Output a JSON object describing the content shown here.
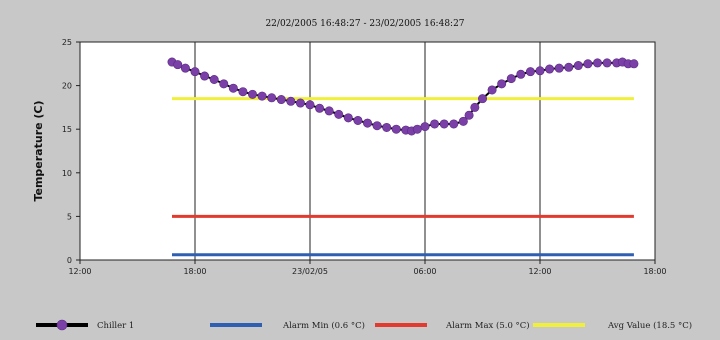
{
  "chart_data": {
    "type": "line",
    "title": "22/02/2005 16:48:27 - 23/02/2005 16:48:27",
    "xlabel": "",
    "ylabel": "Temperature (C)",
    "ylim": [
      0,
      25
    ],
    "yticks": [
      0,
      5,
      10,
      15,
      20,
      25
    ],
    "xlim_hours": [
      0,
      30
    ],
    "xticks": [
      {
        "h": 0,
        "label": "12:00"
      },
      {
        "h": 6,
        "label": "18:00"
      },
      {
        "h": 12,
        "label": "23/02/05"
      },
      {
        "h": 18,
        "label": "06:00"
      },
      {
        "h": 24,
        "label": "12:00"
      },
      {
        "h": 30,
        "label": "18:00"
      }
    ],
    "grid": "vertical",
    "legend_position": "bottom",
    "series": [
      {
        "name": "Chiller 1",
        "kind": "line-markers",
        "color": "#000000",
        "marker_color": "#7b3fa8",
        "points": [
          [
            4.8,
            22.7
          ],
          [
            5.1,
            22.4
          ],
          [
            5.5,
            22.0
          ],
          [
            6.0,
            21.6
          ],
          [
            6.5,
            21.1
          ],
          [
            7.0,
            20.7
          ],
          [
            7.5,
            20.2
          ],
          [
            8.0,
            19.7
          ],
          [
            8.5,
            19.3
          ],
          [
            9.0,
            19.0
          ],
          [
            9.5,
            18.8
          ],
          [
            10.0,
            18.6
          ],
          [
            10.5,
            18.4
          ],
          [
            11.0,
            18.2
          ],
          [
            11.5,
            18.0
          ],
          [
            12.0,
            17.8
          ],
          [
            12.5,
            17.4
          ],
          [
            13.0,
            17.1
          ],
          [
            13.5,
            16.7
          ],
          [
            14.0,
            16.3
          ],
          [
            14.5,
            16.0
          ],
          [
            15.0,
            15.7
          ],
          [
            15.5,
            15.4
          ],
          [
            16.0,
            15.2
          ],
          [
            16.5,
            15.0
          ],
          [
            17.0,
            14.9
          ],
          [
            17.3,
            14.8
          ],
          [
            17.6,
            15.0
          ],
          [
            18.0,
            15.3
          ],
          [
            18.5,
            15.6
          ],
          [
            19.0,
            15.6
          ],
          [
            19.5,
            15.6
          ],
          [
            20.0,
            15.9
          ],
          [
            20.3,
            16.6
          ],
          [
            20.6,
            17.5
          ],
          [
            21.0,
            18.5
          ],
          [
            21.5,
            19.5
          ],
          [
            22.0,
            20.2
          ],
          [
            22.5,
            20.8
          ],
          [
            23.0,
            21.3
          ],
          [
            23.5,
            21.6
          ],
          [
            24.0,
            21.7
          ],
          [
            24.5,
            21.9
          ],
          [
            25.0,
            22.0
          ],
          [
            25.5,
            22.1
          ],
          [
            26.0,
            22.3
          ],
          [
            26.5,
            22.5
          ],
          [
            27.0,
            22.6
          ],
          [
            27.5,
            22.6
          ],
          [
            28.0,
            22.6
          ],
          [
            28.3,
            22.7
          ],
          [
            28.6,
            22.5
          ],
          [
            28.9,
            22.5
          ]
        ]
      },
      {
        "name": "Alarm Min (0.6 °C)",
        "kind": "hline",
        "color": "#2f5fb3",
        "value": 0.6,
        "from_h": 4.8,
        "to_h": 28.9
      },
      {
        "name": "Alarm Max (5.0 °C)",
        "kind": "hline",
        "color": "#e23a2e",
        "value": 5.0,
        "from_h": 4.8,
        "to_h": 28.9
      },
      {
        "name": "Avg Value (18.5 °C)",
        "kind": "hline",
        "color": "#f0f03a",
        "value": 18.5,
        "from_h": 4.8,
        "to_h": 28.9
      }
    ]
  }
}
